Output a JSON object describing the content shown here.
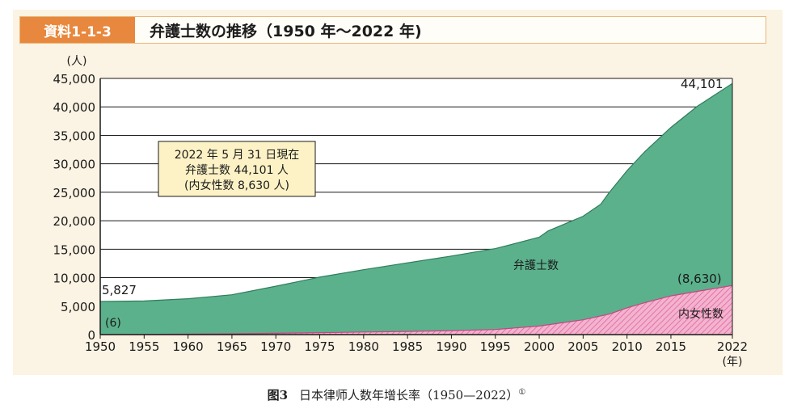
{
  "header": {
    "tag": "資料1-1-3",
    "title": "弁護士数の推移（1950 年～2022 年)"
  },
  "caption": {
    "figure_no": "图3",
    "text": "日本律师人数年增长率（1950—2022）",
    "note_mark": "①"
  },
  "chart_data": {
    "type": "area",
    "title": "弁護士数の推移（1950 年～2022 年)",
    "y_unit_label": "(人)",
    "x_unit_label": "(年)",
    "ylim": [
      0,
      45000
    ],
    "xlim": [
      1950,
      2022
    ],
    "yticks": [
      0,
      5000,
      10000,
      15000,
      20000,
      25000,
      30000,
      35000,
      40000,
      45000
    ],
    "ytick_labels": [
      "0",
      "5,000",
      "10,000",
      "15,000",
      "20,000",
      "25,000",
      "30,000",
      "35,000",
      "40,000",
      "45,000"
    ],
    "xticks": [
      1950,
      1955,
      1960,
      1965,
      1970,
      1975,
      1980,
      1985,
      1990,
      1995,
      2000,
      2005,
      2010,
      2015,
      2022
    ],
    "xtick_labels": [
      "1950",
      "1955",
      "1960",
      "1965",
      "1970",
      "1975",
      "1980",
      "1985",
      "1990",
      "1995",
      "2000",
      "2005",
      "2010",
      "2015",
      "2022"
    ],
    "grid": true,
    "series": [
      {
        "name": "弁護士数",
        "color": "#5bb18c",
        "x": [
          1950,
          1955,
          1960,
          1965,
          1970,
          1975,
          1980,
          1985,
          1990,
          1995,
          2000,
          2001,
          2005,
          2007,
          2008,
          2010,
          2012,
          2015,
          2018,
          2020,
          2022
        ],
        "y": [
          5827,
          5900,
          6300,
          7000,
          8500,
          10100,
          11400,
          12600,
          13800,
          15100,
          17100,
          18200,
          20800,
          22900,
          25000,
          28800,
          32100,
          36400,
          40100,
          42100,
          44101
        ]
      },
      {
        "name": "内女性数",
        "color": "#e986b3",
        "x": [
          1950,
          1955,
          1960,
          1965,
          1970,
          1975,
          1980,
          1985,
          1990,
          1995,
          2000,
          2005,
          2008,
          2010,
          2012,
          2015,
          2018,
          2020,
          2022
        ],
        "y": [
          6,
          40,
          80,
          140,
          230,
          330,
          450,
          560,
          690,
          900,
          1500,
          2600,
          3600,
          4700,
          5600,
          6800,
          7600,
          8100,
          8630
        ]
      }
    ],
    "annotations": {
      "start_total": "5,827",
      "start_women": "(6)",
      "end_total": "44,101",
      "end_women": "(8,630)",
      "lawyers_label": "弁護士数",
      "women_label": "内女性数",
      "note_lines": [
        "2022 年 5 月 31 日現在",
        "弁護士数 44,101 人",
        "(内女性数 8,630 人)"
      ]
    }
  }
}
